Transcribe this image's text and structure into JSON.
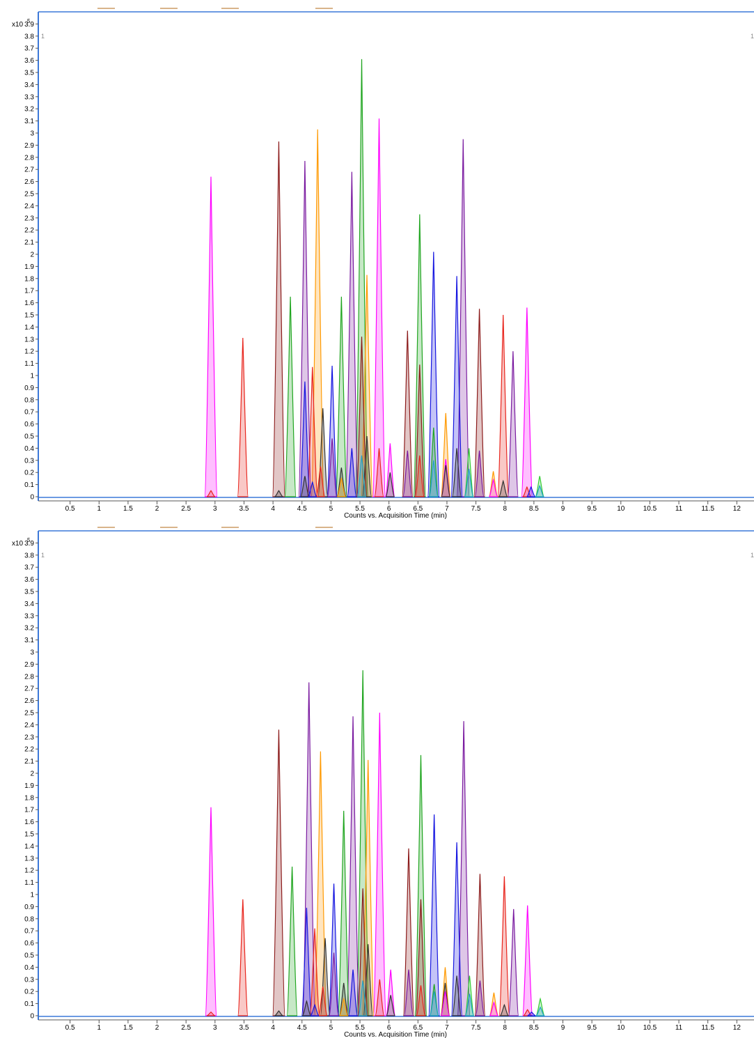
{
  "colors": {
    "magenta": "#ff00ff",
    "red": "#e8241c",
    "brown": "#8b1a1a",
    "purple": "#7a1aa0",
    "green": "#1fa51f",
    "orange": "#ff9900",
    "blue": "#1515e0",
    "darkgray": "#333333",
    "teal": "#1fa0c8",
    "lime": "#33cc33",
    "frame": "#3c78d8",
    "tab": "#d8b48a"
  },
  "chart_data": [
    {
      "type": "line",
      "scale_label": "x10",
      "scale_exponent": "5",
      "corner_left": "1",
      "corner_right": "1",
      "xlabel": "Counts vs. Acquisition Time (min)",
      "xlim": [
        0,
        12.2
      ],
      "ylim": [
        0,
        4.0
      ],
      "x_ticks": [
        "0.5",
        "1",
        "1.5",
        "2",
        "2.5",
        "3",
        "3.5",
        "4",
        "4.5",
        "5",
        "5.5",
        "6",
        "6.5",
        "7",
        "7.5",
        "8",
        "8.5",
        "9",
        "9.5",
        "10",
        "10.5",
        "11",
        "11.5",
        "12"
      ],
      "y_ticks": [
        "0",
        "0.1",
        "0.2",
        "0.3",
        "0.4",
        "0.5",
        "0.6",
        "0.7",
        "0.8",
        "0.9",
        "1",
        "1.1",
        "1.2",
        "1.3",
        "1.4",
        "1.5",
        "1.6",
        "1.7",
        "1.8",
        "1.9",
        "2",
        "2.1",
        "2.2",
        "2.3",
        "2.4",
        "2.5",
        "2.6",
        "2.7",
        "2.8",
        "2.9",
        "3",
        "3.1",
        "3.2",
        "3.3",
        "3.4",
        "3.5",
        "3.6",
        "3.7",
        "3.8",
        "3.9"
      ],
      "peaks": [
        {
          "x": 2.93,
          "y": 2.64,
          "color": "magenta"
        },
        {
          "x": 2.93,
          "y": 0.05,
          "color": "red"
        },
        {
          "x": 3.48,
          "y": 1.31,
          "color": "red"
        },
        {
          "x": 4.1,
          "y": 2.93,
          "color": "brown"
        },
        {
          "x": 4.1,
          "y": 0.05,
          "color": "darkgray"
        },
        {
          "x": 4.3,
          "y": 1.65,
          "color": "green"
        },
        {
          "x": 4.55,
          "y": 2.77,
          "color": "purple"
        },
        {
          "x": 4.55,
          "y": 0.95,
          "color": "blue"
        },
        {
          "x": 4.55,
          "y": 0.17,
          "color": "darkgray"
        },
        {
          "x": 4.68,
          "y": 1.07,
          "color": "red"
        },
        {
          "x": 4.68,
          "y": 0.12,
          "color": "blue"
        },
        {
          "x": 4.77,
          "y": 3.03,
          "color": "orange"
        },
        {
          "x": 4.82,
          "y": 0.25,
          "color": "red"
        },
        {
          "x": 4.86,
          "y": 0.73,
          "color": "darkgray"
        },
        {
          "x": 5.02,
          "y": 1.08,
          "color": "blue"
        },
        {
          "x": 5.02,
          "y": 0.48,
          "color": "purple"
        },
        {
          "x": 5.18,
          "y": 1.65,
          "color": "green"
        },
        {
          "x": 5.18,
          "y": 0.24,
          "color": "darkgray"
        },
        {
          "x": 5.18,
          "y": 0.15,
          "color": "orange"
        },
        {
          "x": 5.36,
          "y": 2.68,
          "color": "purple"
        },
        {
          "x": 5.36,
          "y": 0.4,
          "color": "blue"
        },
        {
          "x": 5.53,
          "y": 3.61,
          "color": "green"
        },
        {
          "x": 5.53,
          "y": 1.32,
          "color": "brown"
        },
        {
          "x": 5.53,
          "y": 0.34,
          "color": "teal"
        },
        {
          "x": 5.62,
          "y": 1.83,
          "color": "orange"
        },
        {
          "x": 5.62,
          "y": 0.5,
          "color": "darkgray"
        },
        {
          "x": 5.83,
          "y": 3.12,
          "color": "magenta"
        },
        {
          "x": 5.83,
          "y": 0.4,
          "color": "red"
        },
        {
          "x": 6.02,
          "y": 0.44,
          "color": "magenta"
        },
        {
          "x": 6.02,
          "y": 0.2,
          "color": "darkgray"
        },
        {
          "x": 6.32,
          "y": 1.37,
          "color": "brown"
        },
        {
          "x": 6.32,
          "y": 0.38,
          "color": "purple"
        },
        {
          "x": 6.53,
          "y": 2.33,
          "color": "green"
        },
        {
          "x": 6.53,
          "y": 1.09,
          "color": "brown"
        },
        {
          "x": 6.53,
          "y": 0.34,
          "color": "red"
        },
        {
          "x": 6.77,
          "y": 2.02,
          "color": "blue"
        },
        {
          "x": 6.77,
          "y": 0.57,
          "color": "green"
        },
        {
          "x": 6.77,
          "y": 0.3,
          "color": "teal"
        },
        {
          "x": 6.98,
          "y": 0.69,
          "color": "orange"
        },
        {
          "x": 6.98,
          "y": 0.31,
          "color": "magenta"
        },
        {
          "x": 6.98,
          "y": 0.26,
          "color": "darkgray"
        },
        {
          "x": 7.17,
          "y": 1.82,
          "color": "blue"
        },
        {
          "x": 7.17,
          "y": 0.4,
          "color": "darkgray"
        },
        {
          "x": 7.28,
          "y": 2.95,
          "color": "purple"
        },
        {
          "x": 7.38,
          "y": 0.4,
          "color": "lime"
        },
        {
          "x": 7.38,
          "y": 0.23,
          "color": "teal"
        },
        {
          "x": 7.56,
          "y": 1.55,
          "color": "brown"
        },
        {
          "x": 7.56,
          "y": 0.38,
          "color": "purple"
        },
        {
          "x": 7.8,
          "y": 0.21,
          "color": "orange"
        },
        {
          "x": 7.8,
          "y": 0.14,
          "color": "magenta"
        },
        {
          "x": 7.97,
          "y": 1.5,
          "color": "red"
        },
        {
          "x": 7.97,
          "y": 0.13,
          "color": "darkgray"
        },
        {
          "x": 8.14,
          "y": 1.2,
          "color": "purple"
        },
        {
          "x": 8.38,
          "y": 1.56,
          "color": "magenta"
        },
        {
          "x": 8.38,
          "y": 0.08,
          "color": "red"
        },
        {
          "x": 8.45,
          "y": 0.08,
          "color": "blue"
        },
        {
          "x": 8.6,
          "y": 0.17,
          "color": "lime"
        },
        {
          "x": 8.6,
          "y": 0.09,
          "color": "teal"
        }
      ]
    },
    {
      "type": "line",
      "scale_label": "x10",
      "scale_exponent": "5",
      "corner_left": "1",
      "corner_right": "1",
      "xlabel": "Counts vs. Acquisition Time (min)",
      "xlim": [
        0,
        12.2
      ],
      "ylim": [
        0,
        4.0
      ],
      "x_ticks": [
        "0.5",
        "1",
        "1.5",
        "2",
        "2.5",
        "3",
        "3.5",
        "4",
        "4.5",
        "5",
        "5.5",
        "6",
        "6.5",
        "7",
        "7.5",
        "8",
        "8.5",
        "9",
        "9.5",
        "10",
        "10.5",
        "11",
        "11.5",
        "12"
      ],
      "y_ticks": [
        "0",
        "0.1",
        "0.2",
        "0.3",
        "0.4",
        "0.5",
        "0.6",
        "0.7",
        "0.8",
        "0.9",
        "1",
        "1.1",
        "1.2",
        "1.3",
        "1.4",
        "1.5",
        "1.6",
        "1.7",
        "1.8",
        "1.9",
        "2",
        "2.1",
        "2.2",
        "2.3",
        "2.4",
        "2.5",
        "2.6",
        "2.7",
        "2.8",
        "2.9",
        "3",
        "3.1",
        "3.2",
        "3.3",
        "3.4",
        "3.5",
        "3.6",
        "3.7",
        "3.8",
        "3.9"
      ],
      "peaks": [
        {
          "x": 2.93,
          "y": 1.72,
          "color": "magenta"
        },
        {
          "x": 2.93,
          "y": 0.03,
          "color": "red"
        },
        {
          "x": 3.48,
          "y": 0.96,
          "color": "red"
        },
        {
          "x": 4.1,
          "y": 2.36,
          "color": "brown"
        },
        {
          "x": 4.1,
          "y": 0.04,
          "color": "darkgray"
        },
        {
          "x": 4.33,
          "y": 1.23,
          "color": "green"
        },
        {
          "x": 4.62,
          "y": 2.75,
          "color": "purple"
        },
        {
          "x": 4.58,
          "y": 0.89,
          "color": "blue"
        },
        {
          "x": 4.58,
          "y": 0.12,
          "color": "darkgray"
        },
        {
          "x": 4.72,
          "y": 0.72,
          "color": "red"
        },
        {
          "x": 4.72,
          "y": 0.09,
          "color": "blue"
        },
        {
          "x": 4.82,
          "y": 2.18,
          "color": "orange"
        },
        {
          "x": 4.86,
          "y": 0.24,
          "color": "red"
        },
        {
          "x": 4.9,
          "y": 0.64,
          "color": "darkgray"
        },
        {
          "x": 5.05,
          "y": 1.09,
          "color": "blue"
        },
        {
          "x": 5.05,
          "y": 0.52,
          "color": "purple"
        },
        {
          "x": 5.22,
          "y": 1.69,
          "color": "green"
        },
        {
          "x": 5.22,
          "y": 0.27,
          "color": "darkgray"
        },
        {
          "x": 5.22,
          "y": 0.14,
          "color": "orange"
        },
        {
          "x": 5.38,
          "y": 2.47,
          "color": "purple"
        },
        {
          "x": 5.38,
          "y": 0.38,
          "color": "blue"
        },
        {
          "x": 5.55,
          "y": 2.85,
          "color": "green"
        },
        {
          "x": 5.55,
          "y": 1.05,
          "color": "brown"
        },
        {
          "x": 5.55,
          "y": 0.29,
          "color": "teal"
        },
        {
          "x": 5.64,
          "y": 2.11,
          "color": "orange"
        },
        {
          "x": 5.64,
          "y": 0.59,
          "color": "darkgray"
        },
        {
          "x": 5.84,
          "y": 2.5,
          "color": "magenta"
        },
        {
          "x": 5.84,
          "y": 0.3,
          "color": "red"
        },
        {
          "x": 6.03,
          "y": 0.38,
          "color": "magenta"
        },
        {
          "x": 6.03,
          "y": 0.17,
          "color": "darkgray"
        },
        {
          "x": 6.34,
          "y": 1.38,
          "color": "brown"
        },
        {
          "x": 6.34,
          "y": 0.38,
          "color": "purple"
        },
        {
          "x": 6.55,
          "y": 2.15,
          "color": "green"
        },
        {
          "x": 6.55,
          "y": 0.96,
          "color": "brown"
        },
        {
          "x": 6.55,
          "y": 0.25,
          "color": "red"
        },
        {
          "x": 6.78,
          "y": 1.66,
          "color": "blue"
        },
        {
          "x": 6.78,
          "y": 0.26,
          "color": "green"
        },
        {
          "x": 6.78,
          "y": 0.2,
          "color": "teal"
        },
        {
          "x": 6.97,
          "y": 0.4,
          "color": "orange"
        },
        {
          "x": 6.97,
          "y": 0.2,
          "color": "magenta"
        },
        {
          "x": 6.97,
          "y": 0.27,
          "color": "darkgray"
        },
        {
          "x": 7.17,
          "y": 1.43,
          "color": "blue"
        },
        {
          "x": 7.17,
          "y": 0.33,
          "color": "darkgray"
        },
        {
          "x": 7.29,
          "y": 2.43,
          "color": "purple"
        },
        {
          "x": 7.39,
          "y": 0.33,
          "color": "lime"
        },
        {
          "x": 7.39,
          "y": 0.18,
          "color": "teal"
        },
        {
          "x": 7.57,
          "y": 1.17,
          "color": "brown"
        },
        {
          "x": 7.57,
          "y": 0.29,
          "color": "purple"
        },
        {
          "x": 7.81,
          "y": 0.19,
          "color": "orange"
        },
        {
          "x": 7.81,
          "y": 0.11,
          "color": "magenta"
        },
        {
          "x": 7.99,
          "y": 1.15,
          "color": "red"
        },
        {
          "x": 7.99,
          "y": 0.09,
          "color": "darkgray"
        },
        {
          "x": 8.15,
          "y": 0.88,
          "color": "purple"
        },
        {
          "x": 8.39,
          "y": 0.91,
          "color": "magenta"
        },
        {
          "x": 8.39,
          "y": 0.05,
          "color": "red"
        },
        {
          "x": 8.46,
          "y": 0.03,
          "color": "blue"
        },
        {
          "x": 8.61,
          "y": 0.14,
          "color": "lime"
        },
        {
          "x": 8.61,
          "y": 0.07,
          "color": "teal"
        }
      ]
    }
  ]
}
